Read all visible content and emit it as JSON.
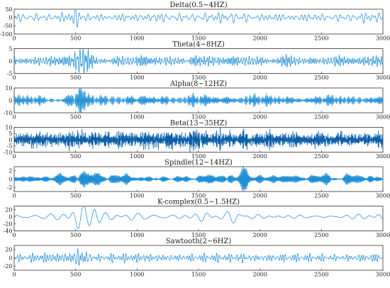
{
  "figure": {
    "line_color": "#1f8fd6",
    "dark_line_color": "#0a5fa8"
  },
  "chart_data": [
    {
      "type": "line",
      "title": "Delta(0.5~4HZ)",
      "xlim": [
        0,
        3000
      ],
      "ylim": [
        -100,
        50
      ],
      "xticks": [
        0,
        500,
        1000,
        1500,
        2000,
        2500,
        3000
      ],
      "yticks": [
        -100,
        -50,
        0,
        50
      ],
      "series": [
        {
          "freq_band_hz": [
            0.5,
            4
          ],
          "amplitude_estimate": 18,
          "bursts": [
            [
              520,
              60,
              3.0
            ],
            [
              640,
              40,
              1.8
            ],
            [
              1780,
              50,
              1.6
            ],
            [
              1900,
              40,
              1.4
            ]
          ]
        }
      ]
    },
    {
      "type": "line",
      "title": "Theta(4~8HZ)",
      "xlim": [
        0,
        3000
      ],
      "ylim": [
        -5,
        5
      ],
      "xticks": [
        0,
        500,
        1000,
        1500,
        2000,
        2500,
        3000
      ],
      "yticks": [
        -5,
        0,
        5
      ],
      "series": [
        {
          "freq_band_hz": [
            4,
            8
          ],
          "amplitude_estimate": 1.4,
          "bursts": [
            [
              530,
              70,
              3.4
            ],
            [
              900,
              60,
              1.3
            ],
            [
              1450,
              60,
              1.2
            ],
            [
              1880,
              60,
              1.3
            ]
          ]
        }
      ]
    },
    {
      "type": "line",
      "title": "Alpha(8~12HZ)",
      "xlim": [
        0,
        3000
      ],
      "ylim": [
        -10,
        10
      ],
      "xticks": [
        0,
        500,
        1000,
        1500,
        2000,
        2500,
        3000
      ],
      "yticks": [
        -10,
        0,
        10
      ],
      "series": [
        {
          "freq_band_hz": [
            8,
            12
          ],
          "amplitude_estimate": 2.6,
          "bursts": [
            [
              530,
              70,
              3.0
            ],
            [
              830,
              70,
              1.6
            ],
            [
              1450,
              70,
              1.4
            ],
            [
              1900,
              70,
              1.6
            ]
          ]
        }
      ]
    },
    {
      "type": "line",
      "title": "Beta(13~35HZ)",
      "xlim": [
        0,
        3000
      ],
      "ylim": [
        -10,
        10
      ],
      "xticks": [
        0,
        500,
        1000,
        1500,
        2000,
        2500,
        3000
      ],
      "yticks": [
        -10,
        -5,
        0,
        5,
        10
      ],
      "series": [
        {
          "freq_band_hz": [
            13,
            35
          ],
          "amplitude_estimate": 4.2,
          "bursts": [
            [
              500,
              60,
              1.4
            ],
            [
              1500,
              80,
              1.2
            ]
          ]
        }
      ]
    },
    {
      "type": "line",
      "title": "Spindle(12~14HZ)",
      "xlim": [
        0,
        3000
      ],
      "ylim": [
        -3,
        3
      ],
      "xticks": [
        0,
        500,
        1000,
        1500,
        2000,
        2500,
        3000
      ],
      "yticks": [
        -2,
        0,
        2
      ],
      "series": [
        {
          "freq_band_hz": [
            12,
            14
          ],
          "amplitude_estimate": 1.3,
          "bursts": [
            [
              1870,
              40,
              1.9
            ],
            [
              540,
              70,
              1.3
            ]
          ]
        }
      ]
    },
    {
      "type": "line",
      "title": "K-complex(0.5~1.5HZ)",
      "xlim": [
        0,
        3000
      ],
      "ylim": [
        -40,
        30
      ],
      "xticks": [
        0,
        500,
        1000,
        1500,
        2000,
        2500,
        3000
      ],
      "yticks": [
        -40,
        -20,
        0,
        20
      ],
      "series": [
        {
          "freq_band_hz": [
            0.5,
            1.5
          ],
          "amplitude_estimate": 6,
          "bursts": [
            [
              520,
              70,
              5.0
            ],
            [
              640,
              60,
              3.5
            ],
            [
              1550,
              70,
              2.0
            ],
            [
              1790,
              70,
              2.2
            ]
          ]
        }
      ]
    },
    {
      "type": "line",
      "title": "Sawtooth(2~6HZ)",
      "xlim": [
        0,
        3000
      ],
      "ylim": [
        -30,
        30
      ],
      "xticks": [
        0,
        500,
        1000,
        1500,
        2000,
        2500,
        3000
      ],
      "yticks": [
        -20,
        0,
        20
      ],
      "series": [
        {
          "freq_band_hz": [
            2,
            6
          ],
          "amplitude_estimate": 7,
          "bursts": [
            [
              540,
              70,
              3.0
            ],
            [
              1850,
              60,
              1.4
            ]
          ]
        }
      ]
    }
  ]
}
